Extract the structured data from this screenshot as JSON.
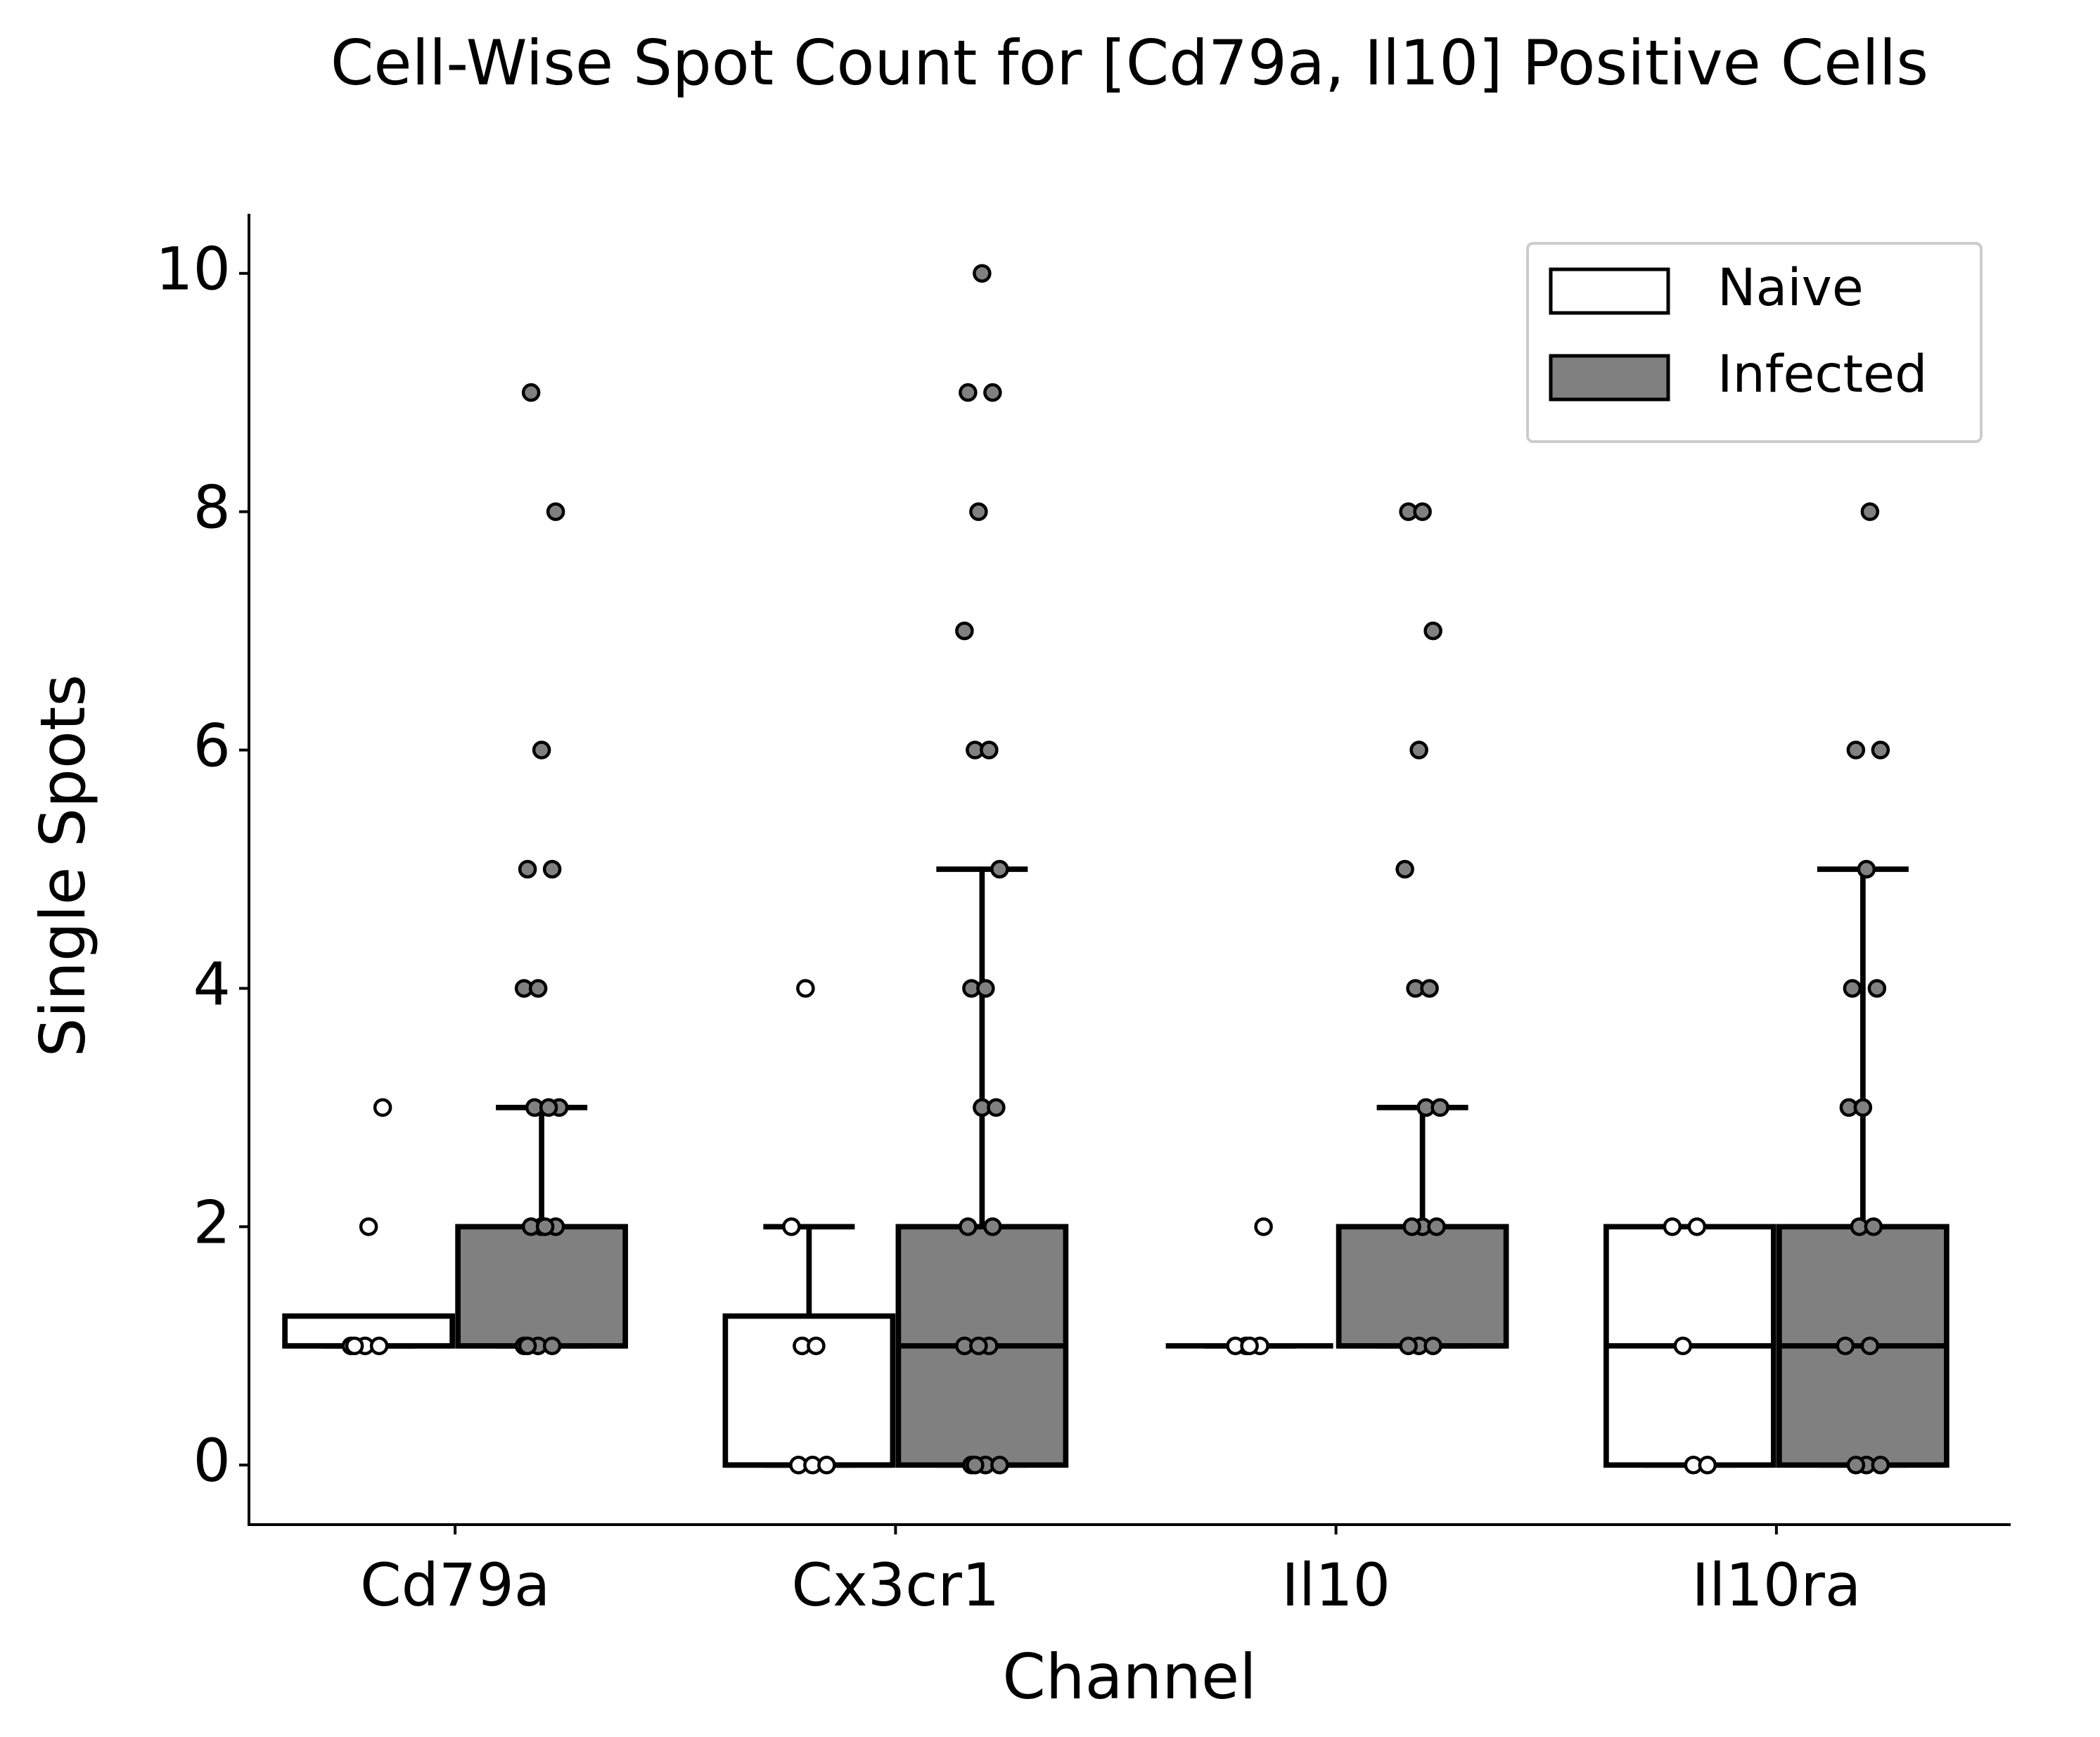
{
  "chart_data": {
    "type": "box",
    "title": "Cell-Wise Spot Count for [Cd79a, Il10] Positive Cells",
    "x_label": "Channel",
    "y_label": "Single Spots",
    "categories": [
      "Cd79a",
      "Cx3cr1",
      "Il10",
      "Il10ra"
    ],
    "series": [
      {
        "name": "Naive",
        "color": "#ffffff",
        "q1": [
          1,
          0,
          1,
          0
        ],
        "median": [
          1,
          0,
          1,
          1
        ],
        "q3": [
          1.25,
          1.25,
          1,
          2
        ],
        "whislo": [
          1,
          0,
          1,
          0
        ],
        "whishi": [
          1,
          2,
          1,
          2
        ],
        "points": [
          [
            1,
            1,
            1,
            1,
            2,
            3
          ],
          [
            0,
            0,
            0,
            1,
            1,
            2,
            4
          ],
          [
            1,
            1,
            1,
            1,
            2
          ],
          [
            0,
            0,
            1,
            2,
            2
          ]
        ]
      },
      {
        "name": "Infected",
        "color": "#808080",
        "q1": [
          1,
          0,
          1,
          0
        ],
        "median": [
          1,
          1,
          1,
          1
        ],
        "q3": [
          2,
          2,
          2,
          2
        ],
        "whislo": [
          1,
          0,
          1,
          0
        ],
        "whishi": [
          3,
          5,
          3,
          5
        ],
        "points": [
          [
            1,
            1,
            1,
            1,
            2,
            2,
            2,
            2,
            3,
            3,
            3,
            4,
            4,
            5,
            5,
            6,
            8,
            9
          ],
          [
            0,
            0,
            0,
            0,
            1,
            1,
            1,
            2,
            2,
            3,
            3,
            4,
            4,
            5,
            6,
            6,
            7,
            8,
            9,
            9,
            10
          ],
          [
            1,
            1,
            1,
            2,
            2,
            2,
            3,
            3,
            4,
            4,
            5,
            6,
            7,
            8,
            8
          ],
          [
            0,
            0,
            0,
            1,
            1,
            2,
            2,
            3,
            3,
            4,
            4,
            5,
            6,
            6,
            8
          ]
        ]
      }
    ],
    "ylim": [
      -0.5,
      10.5
    ],
    "yticks": [
      0,
      2,
      4,
      6,
      8,
      10
    ],
    "legend": "upper right"
  }
}
